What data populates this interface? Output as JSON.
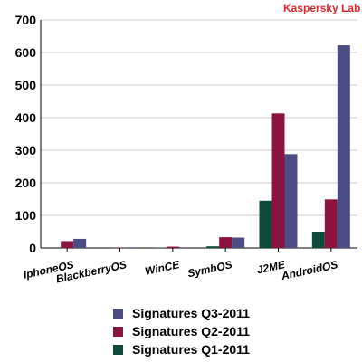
{
  "brand": {
    "text": "Kaspersky Lab",
    "color": "#e8232a"
  },
  "chart_data": {
    "type": "bar",
    "title": "",
    "xlabel": "",
    "ylabel": "",
    "categories": [
      "IphoneOS",
      "BlackberryOS",
      "WinCE",
      "SymbOS",
      "J2ME",
      "AndroidOS"
    ],
    "ylim": [
      0,
      700
    ],
    "yticks": [
      0,
      100,
      200,
      300,
      400,
      500,
      600,
      700
    ],
    "grid": true,
    "legend_position": "bottom",
    "series": [
      {
        "name": "Signatures Q1-2011",
        "color": "#0d4a3c",
        "values": [
          0,
          0,
          1,
          5,
          145,
          50
        ]
      },
      {
        "name": "Signatures Q2-2011",
        "color": "#8c1240",
        "values": [
          21,
          1,
          4,
          33,
          413,
          149
        ]
      },
      {
        "name": "Signatures Q3-2011",
        "color": "#4b4c82",
        "values": [
          28,
          2,
          2,
          32,
          288,
          622
        ]
      }
    ],
    "legend_order": [
      2,
      1,
      0
    ]
  }
}
